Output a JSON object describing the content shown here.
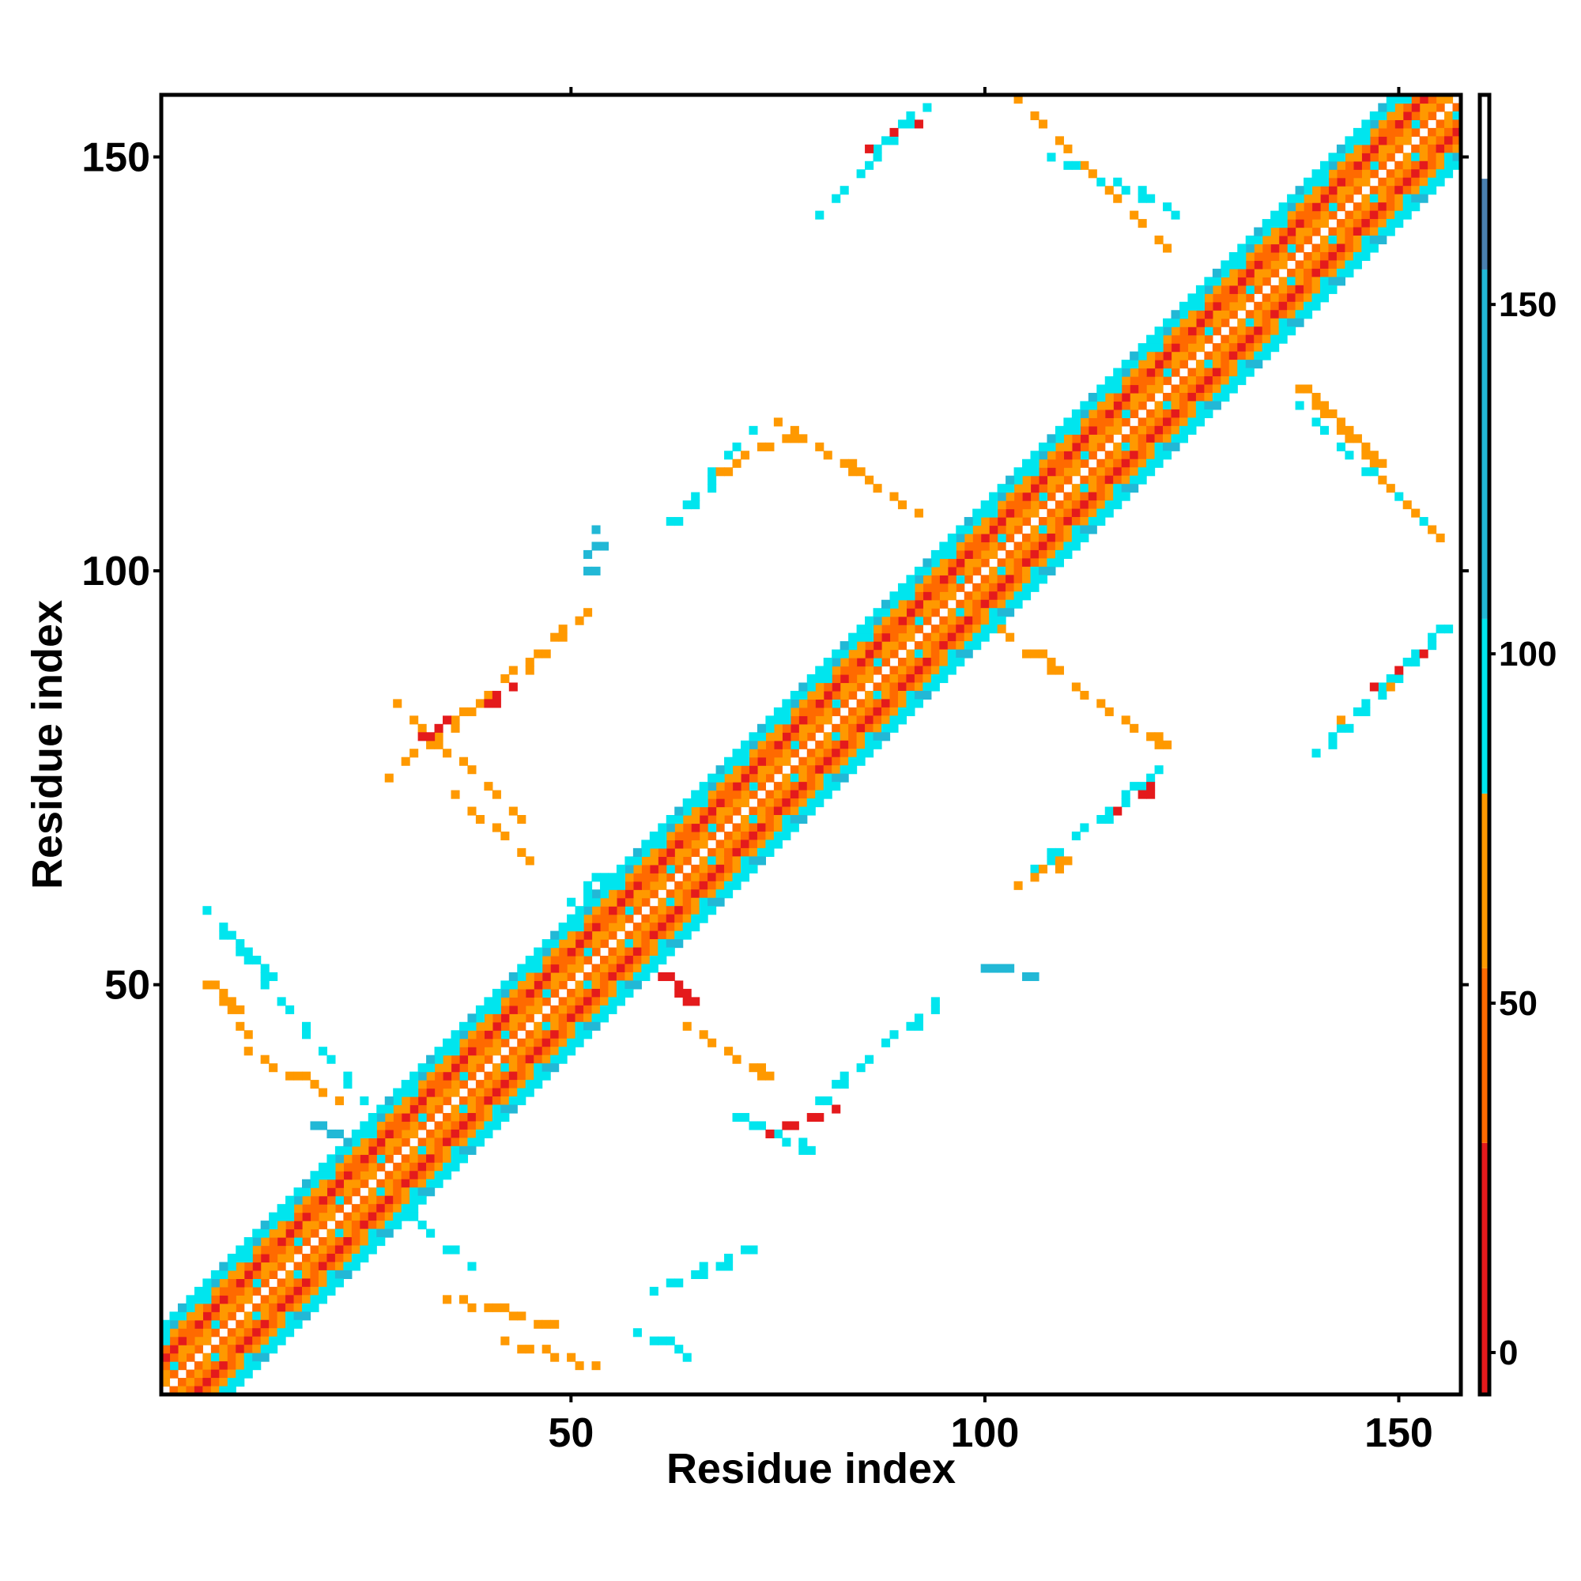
{
  "chart_data": {
    "type": "heatmap",
    "title": "",
    "xlabel": "Residue index",
    "ylabel": "Residue index",
    "xlim": [
      1,
      157
    ],
    "ylim": [
      1,
      157
    ],
    "x_ticks": [
      "50",
      "100",
      "150"
    ],
    "y_ticks": [
      "50",
      "100",
      "150"
    ],
    "grid": false,
    "legend": "colorbar right",
    "colorbar": {
      "range": [
        -6,
        180
      ],
      "ticks": [
        "0",
        "50",
        "100",
        "150"
      ],
      "bins": [
        {
          "from": -6,
          "to": 30,
          "color": "#e41a1c"
        },
        {
          "from": 30,
          "to": 55,
          "color": "#ff6a00"
        },
        {
          "from": 55,
          "to": 80,
          "color": "#ff9900"
        },
        {
          "from": 80,
          "to": 105,
          "color": "#00e5ee"
        },
        {
          "from": 105,
          "to": 155,
          "color": "#22b8d6"
        },
        {
          "from": 155,
          "to": 168,
          "color": "#4a80b0"
        },
        {
          "from": 168,
          "to": 180,
          "color": "#ffffff"
        }
      ]
    },
    "palette_order": [
      "#e41a1c",
      "#ff6a00",
      "#ff9900",
      "#00e5ee",
      "#3ab0d8"
    ],
    "diagonal_band": {
      "from": 1,
      "to": 157,
      "half_width": 8,
      "offset_values": [
        {
          "offset": 0,
          "value": 180
        },
        {
          "offset": 1,
          "value": 40
        },
        {
          "offset": 2,
          "value": 65
        },
        {
          "offset": 3,
          "value": 40
        },
        {
          "offset": 4,
          "value": 15
        },
        {
          "offset": 5,
          "value": 45
        },
        {
          "offset": 6,
          "value": 70
        },
        {
          "offset": 7,
          "value": 95
        },
        {
          "offset": 8,
          "value": 95
        }
      ]
    },
    "off_diagonal_segments": [
      {
        "x": [
          6,
          25
        ],
        "y": [
          59,
          36
        ],
        "value": 95
      },
      {
        "x": [
          6,
          11
        ],
        "y": [
          50,
          44
        ],
        "value": 60
      },
      {
        "x": [
          11,
          22
        ],
        "y": [
          42,
          36
        ],
        "value": 65
      },
      {
        "x": [
          19,
          24
        ],
        "y": [
          33,
          31
        ],
        "value": 120
      },
      {
        "x": [
          28,
          52
        ],
        "y": [
          75,
          95
        ],
        "value": 65
      },
      {
        "x": [
          29,
          44
        ],
        "y": [
          84,
          70
        ],
        "value": 60
      },
      {
        "x": [
          32,
          43
        ],
        "y": [
          80,
          86
        ],
        "value": 20
      },
      {
        "x": [
          36,
          45
        ],
        "y": [
          73,
          65
        ],
        "value": 60
      },
      {
        "x": [
          30,
          38
        ],
        "y": [
          22,
          16
        ],
        "value": 95
      },
      {
        "x": [
          35,
          48
        ],
        "y": [
          12,
          9
        ],
        "value": 60
      },
      {
        "x": [
          42,
          52
        ],
        "y": [
          7,
          4
        ],
        "value": 65
      },
      {
        "x": [
          50,
          53
        ],
        "y": [
          60,
          63
        ],
        "value": 95
      },
      {
        "x": [
          61,
          64
        ],
        "y": [
          51,
          48
        ],
        "value": 20
      },
      {
        "x": [
          58,
          64
        ],
        "y": [
          8,
          5
        ],
        "value": 95
      },
      {
        "x": [
          60,
          72
        ],
        "y": [
          13,
          18
        ],
        "value": 95
      },
      {
        "x": [
          64,
          73
        ],
        "y": [
          45,
          39
        ],
        "value": 60
      },
      {
        "x": [
          70,
          78
        ],
        "y": [
          34,
          30
        ],
        "value": 95
      },
      {
        "x": [
          74,
          82
        ],
        "y": [
          32,
          35
        ],
        "value": 20
      },
      {
        "x": [
          80,
          94
        ],
        "y": [
          36,
          48
        ],
        "value": 95
      },
      {
        "x": [
          62,
          72
        ],
        "y": [
          106,
          117
        ],
        "value": 95
      },
      {
        "x": [
          68,
          78
        ],
        "y": [
          112,
          117
        ],
        "value": 65
      },
      {
        "x": [
          75,
          92
        ],
        "y": [
          118,
          107
        ],
        "value": 60
      },
      {
        "x": [
          52,
          53
        ],
        "y": [
          100,
          105
        ],
        "value": 140
      },
      {
        "x": [
          80,
          92
        ],
        "y": [
          143,
          156
        ],
        "value": 95
      },
      {
        "x": [
          86,
          92
        ],
        "y": [
          151,
          154
        ],
        "value": 20
      },
      {
        "x": [
          104,
          122
        ],
        "y": [
          157,
          139
        ],
        "value": 60
      },
      {
        "x": [
          108,
          124
        ],
        "y": [
          150,
          143
        ],
        "value": 95
      },
      {
        "x": [
          100,
          121
        ],
        "y": [
          94,
          79
        ],
        "value": 60
      },
      {
        "x": [
          106,
          121
        ],
        "y": [
          64,
          76
        ],
        "value": 95
      },
      {
        "x": [
          114,
          120
        ],
        "y": [
          70,
          74
        ],
        "value": 20
      },
      {
        "x": [
          104,
          110
        ],
        "y": [
          62,
          65
        ],
        "value": 60
      },
      {
        "x": [
          100,
          106
        ],
        "y": [
          52,
          51
        ],
        "value": 120
      },
      {
        "x": [
          138,
          155
        ],
        "y": [
          122,
          104
        ],
        "value": 60
      },
      {
        "x": [
          138,
          155
        ],
        "y": [
          120,
          104
        ],
        "value": 95
      },
      {
        "x": [
          140,
          156
        ],
        "y": [
          78,
          94
        ],
        "value": 95
      },
      {
        "x": [
          147,
          154
        ],
        "y": [
          86,
          91
        ],
        "value": 20
      },
      {
        "x": [
          143,
          150
        ],
        "y": [
          82,
          87
        ],
        "value": 60
      }
    ]
  }
}
